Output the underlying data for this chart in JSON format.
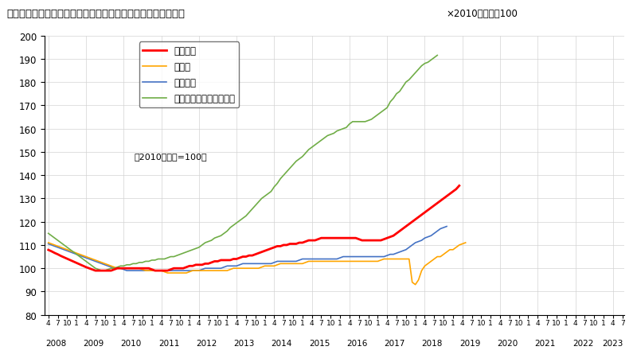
{
  "title": "《不動産価格指数（住宅）（令和５年４月分・季節調整値）》",
  "title_note": "×2010年平均＝100",
  "subtitle": "（2010年平均=100）",
  "ylim": [
    80,
    200
  ],
  "yticks": [
    80,
    90,
    100,
    110,
    120,
    130,
    140,
    150,
    160,
    170,
    180,
    190,
    200
  ],
  "series_labels": [
    "住宅総合",
    "住宅地",
    "戸建住宅",
    "マンション（区分所有）"
  ],
  "series_colors": [
    "#ff0000",
    "#ffa500",
    "#4472c4",
    "#70ad47"
  ],
  "series_linewidths": [
    2.0,
    1.2,
    1.2,
    1.2
  ],
  "start_year": 2008,
  "start_month": 4,
  "end_year": 2023,
  "end_month": 4,
  "住宅総合": [
    107.9,
    107.3,
    106.6,
    106.0,
    105.3,
    104.7,
    104.1,
    103.5,
    102.9,
    102.3,
    101.7,
    101.1,
    100.5,
    100.0,
    99.5,
    99.0,
    99.0,
    99.0,
    99.0,
    99.0,
    99.0,
    99.5,
    100.0,
    100.0,
    100.0,
    100.0,
    100.0,
    100.0,
    100.0,
    100.0,
    100.0,
    100.0,
    100.0,
    99.5,
    99.0,
    99.0,
    99.0,
    99.0,
    99.0,
    99.5,
    100.0,
    100.0,
    100.0,
    100.0,
    100.5,
    101.0,
    101.0,
    101.5,
    101.5,
    101.5,
    102.0,
    102.0,
    102.5,
    103.0,
    103.0,
    103.5,
    103.5,
    103.5,
    103.5,
    104.0,
    104.0,
    104.5,
    105.0,
    105.0,
    105.5,
    105.5,
    106.0,
    106.5,
    107.0,
    107.5,
    108.0,
    108.5,
    109.0,
    109.5,
    109.5,
    110.0,
    110.0,
    110.5,
    110.5,
    110.5,
    111.0,
    111.0,
    111.5,
    112.0,
    112.0,
    112.0,
    112.5,
    113.0,
    113.0,
    113.0,
    113.0,
    113.0,
    113.0,
    113.0,
    113.0,
    113.0,
    113.0,
    113.0,
    113.0,
    112.5,
    112.0,
    112.0,
    112.0,
    112.0,
    112.0,
    112.0,
    112.0,
    112.5,
    113.0,
    113.5,
    114.0,
    115.0,
    116.0,
    117.0,
    118.0,
    119.0,
    120.0,
    121.0,
    122.0,
    123.0,
    124.0,
    125.0,
    126.0,
    127.0,
    128.0,
    129.0,
    130.0,
    131.0,
    132.0,
    133.0,
    134.0,
    135.5
  ],
  "住宅地": [
    111.0,
    110.5,
    110.0,
    109.5,
    109.0,
    108.5,
    108.0,
    107.5,
    107.0,
    106.5,
    106.0,
    105.5,
    105.0,
    104.5,
    104.0,
    103.5,
    103.0,
    102.5,
    102.0,
    101.5,
    101.0,
    100.5,
    100.0,
    100.0,
    100.0,
    100.0,
    100.0,
    100.0,
    100.0,
    100.0,
    99.5,
    99.0,
    99.0,
    99.0,
    99.0,
    99.0,
    99.0,
    98.5,
    98.0,
    98.0,
    98.0,
    98.0,
    98.0,
    98.0,
    98.0,
    98.5,
    99.0,
    99.0,
    99.0,
    99.0,
    99.0,
    99.0,
    99.0,
    99.0,
    99.0,
    99.0,
    99.0,
    99.0,
    99.5,
    100.0,
    100.0,
    100.0,
    100.0,
    100.0,
    100.0,
    100.0,
    100.0,
    100.0,
    100.5,
    101.0,
    101.0,
    101.0,
    101.0,
    101.5,
    102.0,
    102.0,
    102.0,
    102.0,
    102.0,
    102.0,
    102.0,
    102.0,
    102.5,
    103.0,
    103.0,
    103.0,
    103.0,
    103.0,
    103.0,
    103.0,
    103.0,
    103.0,
    103.0,
    103.0,
    103.0,
    103.0,
    103.0,
    103.0,
    103.0,
    103.0,
    103.0,
    103.0,
    103.0,
    103.0,
    103.0,
    103.0,
    103.5,
    104.0,
    104.0,
    104.0,
    104.0,
    104.0,
    104.0,
    104.0,
    104.0,
    104.0,
    94.0,
    93.0,
    95.0,
    99.0,
    101.0,
    102.0,
    103.0,
    104.0,
    105.0,
    105.0,
    106.0,
    107.0,
    108.0,
    108.0,
    109.0,
    110.0,
    110.5,
    111.0
  ],
  "戸建住宅": [
    110.5,
    110.0,
    109.5,
    109.0,
    108.5,
    108.0,
    107.5,
    107.0,
    106.5,
    106.0,
    105.5,
    105.0,
    104.5,
    104.0,
    103.5,
    103.0,
    102.5,
    102.0,
    101.5,
    101.0,
    100.5,
    100.0,
    100.0,
    100.0,
    99.5,
    99.0,
    99.0,
    99.0,
    99.0,
    99.0,
    99.0,
    99.0,
    99.0,
    99.0,
    99.0,
    99.0,
    99.0,
    99.0,
    99.0,
    99.0,
    99.0,
    99.0,
    99.0,
    99.0,
    99.0,
    99.0,
    99.0,
    99.0,
    99.0,
    99.5,
    100.0,
    100.0,
    100.0,
    100.0,
    100.0,
    100.0,
    100.5,
    101.0,
    101.0,
    101.0,
    101.0,
    101.5,
    102.0,
    102.0,
    102.0,
    102.0,
    102.0,
    102.0,
    102.0,
    102.0,
    102.0,
    102.0,
    102.5,
    103.0,
    103.0,
    103.0,
    103.0,
    103.0,
    103.0,
    103.0,
    103.5,
    104.0,
    104.0,
    104.0,
    104.0,
    104.0,
    104.0,
    104.0,
    104.0,
    104.0,
    104.0,
    104.0,
    104.0,
    104.5,
    105.0,
    105.0,
    105.0,
    105.0,
    105.0,
    105.0,
    105.0,
    105.0,
    105.0,
    105.0,
    105.0,
    105.0,
    105.0,
    105.0,
    105.5,
    106.0,
    106.0,
    106.5,
    107.0,
    107.5,
    108.0,
    109.0,
    110.0,
    111.0,
    111.5,
    112.0,
    113.0,
    113.5,
    114.0,
    115.0,
    116.0,
    117.0,
    117.5,
    118.0
  ],
  "マンション（区分所有）": [
    115.0,
    114.0,
    113.0,
    112.0,
    111.0,
    110.0,
    109.0,
    108.0,
    107.0,
    106.0,
    105.0,
    104.0,
    103.0,
    102.0,
    101.0,
    100.0,
    99.5,
    99.0,
    99.0,
    99.5,
    100.0,
    100.0,
    100.5,
    101.0,
    101.0,
    101.5,
    101.5,
    102.0,
    102.0,
    102.5,
    102.5,
    103.0,
    103.0,
    103.5,
    103.5,
    104.0,
    104.0,
    104.0,
    104.5,
    105.0,
    105.0,
    105.5,
    106.0,
    106.5,
    107.0,
    107.5,
    108.0,
    108.5,
    109.0,
    110.0,
    111.0,
    111.5,
    112.0,
    113.0,
    113.5,
    114.0,
    115.0,
    116.0,
    117.5,
    118.5,
    119.5,
    120.5,
    121.5,
    122.5,
    124.0,
    125.5,
    127.0,
    128.5,
    130.0,
    131.0,
    132.0,
    133.0,
    135.0,
    136.5,
    138.5,
    140.0,
    141.5,
    143.0,
    144.5,
    146.0,
    147.0,
    148.0,
    149.5,
    151.0,
    152.0,
    153.0,
    154.0,
    155.0,
    156.0,
    157.0,
    157.5,
    158.0,
    159.0,
    159.5,
    160.0,
    160.5,
    162.0,
    163.0,
    163.0,
    163.0,
    163.0,
    163.0,
    163.5,
    164.0,
    165.0,
    166.0,
    167.0,
    168.0,
    169.0,
    171.5,
    173.0,
    175.0,
    176.0,
    178.0,
    180.0,
    181.0,
    182.5,
    184.0,
    185.5,
    187.0,
    188.0,
    188.5,
    189.5,
    190.5,
    191.5
  ]
}
